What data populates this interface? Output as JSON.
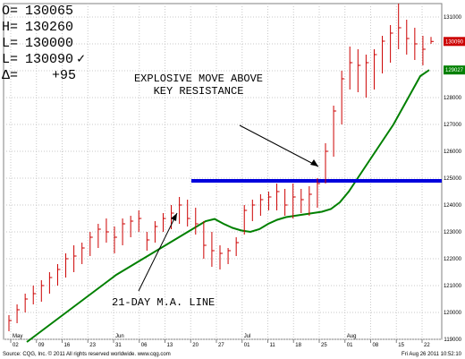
{
  "ohlc_panel": {
    "open_label": "O=",
    "open_value": "130065",
    "high_label": "H=",
    "high_value": "130260",
    "low_label": "L=",
    "low_value": "130000",
    "last_label": "L=",
    "last_value": "130090",
    "last_mark": "✓",
    "change_label": "Δ=",
    "change_value": "+95"
  },
  "annotations": {
    "breakout": "EXPLOSIVE MOVE ABOVE\nKEY RESISTANCE",
    "ma": "21-DAY M.A. LINE"
  },
  "footer": {
    "left": "Source: CQG, Inc. © 2011 All rights reserved worldwide. www.cqg.com",
    "right": "Fri Aug 26 2011 10:52:10"
  },
  "colors": {
    "up_bar": "#cc0000",
    "moving_average": "#008000",
    "resistance": "#0000dd",
    "last_price_tag": "#cc0000",
    "ma_tag": "#008000",
    "grid": "#c8c8c8"
  },
  "chart_data": {
    "type": "ohlc-bar",
    "y_range": [
      119000,
      131500
    ],
    "y_ticks": [
      "131000",
      "130000",
      "129000",
      "128000",
      "127000",
      "126000",
      "125000",
      "124000",
      "123000",
      "122000",
      "121000",
      "120000",
      "119000"
    ],
    "x_tick_labels": [
      "02",
      "09",
      "16",
      "23",
      "31",
      "06",
      "13",
      "20",
      "27",
      "01",
      "11",
      "18",
      "25",
      "01",
      "08",
      "15",
      "22"
    ],
    "month_labels": [
      "May",
      "Jun",
      "Jul",
      "Aug"
    ],
    "resistance_level": 124900,
    "last_price_tag": "130090",
    "ma_tag": "129027",
    "series": [
      {
        "name": "21-DAY M.A. LINE",
        "type": "line",
        "values": [
          118900,
          119150,
          119400,
          119650,
          119900,
          120150,
          120400,
          120650,
          120900,
          121150,
          121400,
          121600,
          121800,
          122000,
          122200,
          122400,
          122600,
          122800,
          123000,
          123200,
          123400,
          123480,
          123300,
          123150,
          123050,
          123000,
          123100,
          123300,
          123450,
          123550,
          123600,
          123650,
          123700,
          123750,
          123850,
          124100,
          124500,
          125000,
          125500,
          126000,
          126500,
          127000,
          127600,
          128200,
          128800,
          129027
        ]
      },
      {
        "name": "price",
        "type": "ohlc",
        "high": [
          119900,
          120300,
          120700,
          121000,
          121200,
          121500,
          121800,
          122200,
          122500,
          122600,
          123000,
          123300,
          123500,
          123200,
          123500,
          123600,
          123800,
          123000,
          123400,
          123700,
          124000,
          124300,
          124200,
          123900,
          123400,
          123000,
          122500,
          122400,
          122800,
          124000,
          124200,
          124400,
          124500,
          124800,
          124600,
          124800,
          124600,
          124700,
          125000,
          126300,
          127700,
          129000,
          129900,
          129800,
          129600,
          129800,
          130300,
          130700,
          131500,
          130900,
          130600,
          130300,
          130260
        ],
        "low": [
          119300,
          119600,
          120000,
          120300,
          120400,
          120700,
          121000,
          121300,
          121500,
          121800,
          122100,
          122400,
          122600,
          122200,
          122500,
          122800,
          123000,
          122300,
          122600,
          123000,
          123100,
          123300,
          123200,
          122900,
          122000,
          121700,
          121600,
          121800,
          122100,
          122900,
          123400,
          123600,
          123800,
          123800,
          123600,
          123500,
          123700,
          123600,
          123900,
          124800,
          125800,
          127000,
          128300,
          128200,
          128000,
          128300,
          128900,
          129300,
          129800,
          129600,
          129400,
          129200,
          130000
        ],
        "close": [
          119700,
          120100,
          120500,
          120700,
          121000,
          121300,
          121600,
          122000,
          122100,
          122400,
          122800,
          123100,
          123000,
          122800,
          123300,
          123400,
          123500,
          122700,
          123200,
          123500,
          123700,
          124000,
          123500,
          123300,
          122500,
          122300,
          122200,
          122300,
          122600,
          123800,
          124000,
          124200,
          124300,
          124500,
          124000,
          124300,
          124200,
          124400,
          124800,
          126000,
          127500,
          128700,
          129300,
          129200,
          129300,
          129600,
          130100,
          130400,
          130600,
          130200,
          130000,
          129800,
          130090
        ]
      }
    ]
  }
}
